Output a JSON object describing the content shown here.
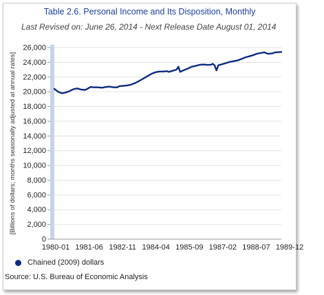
{
  "chart_data": {
    "type": "line",
    "title": "Table 2.6. Personal Income and Its Disposition, Monthly",
    "subtitle": "Last Revised on: June 26, 2014 - Next Release Date August 01, 2014",
    "ylabel": "[Billions of dollars; months seasonally adjusted at annual rates]",
    "xlabel": "",
    "ylim": [
      0,
      26000
    ],
    "yticks": [
      0,
      2000,
      4000,
      6000,
      8000,
      10000,
      12000,
      14000,
      16000,
      18000,
      20000,
      22000,
      24000,
      26000
    ],
    "ytick_labels": [
      "0",
      "2,000",
      "4,000",
      "6,000",
      "8,000",
      "10,000",
      "12,000",
      "14,000",
      "16,000",
      "18,000",
      "20,000",
      "22,000",
      "24,000",
      "26,000"
    ],
    "xtick_labels": [
      "1980-01",
      "1981-06",
      "1982-11",
      "1984-04",
      "1985-09",
      "1987-02",
      "1988-07",
      "1989-12"
    ],
    "grid": true,
    "legend": "bottom-left",
    "series": [
      {
        "name": "Chained (2009) dollars",
        "color": "#0c2a80",
        "x": [
          "1980-01",
          "1980-03",
          "1980-05",
          "1980-07",
          "1980-09",
          "1980-11",
          "1981-01",
          "1981-03",
          "1981-05",
          "1981-06",
          "1981-08",
          "1981-10",
          "1981-12",
          "1982-02",
          "1982-04",
          "1982-06",
          "1982-08",
          "1982-10",
          "1982-11",
          "1983-01",
          "1983-03",
          "1983-05",
          "1983-07",
          "1983-09",
          "1983-11",
          "1984-01",
          "1984-03",
          "1984-04",
          "1984-06",
          "1984-08",
          "1984-10",
          "1984-12",
          "1985-01",
          "1985-03",
          "1985-05",
          "1985-06",
          "1985-07",
          "1985-09",
          "1985-11",
          "1986-01",
          "1986-03",
          "1986-05",
          "1986-07",
          "1986-09",
          "1986-11",
          "1986-12",
          "1987-01",
          "1987-02",
          "1987-03",
          "1987-05",
          "1987-07",
          "1987-09",
          "1987-11",
          "1988-01",
          "1988-03",
          "1988-05",
          "1988-07",
          "1988-09",
          "1988-11",
          "1989-01",
          "1989-03",
          "1989-05",
          "1989-07",
          "1989-09",
          "1989-12"
        ],
        "values": [
          20400,
          20000,
          19800,
          19900,
          20100,
          20350,
          20450,
          20300,
          20250,
          20350,
          20650,
          20600,
          20600,
          20550,
          20650,
          20700,
          20600,
          20600,
          20750,
          20800,
          20850,
          20950,
          21150,
          21400,
          21700,
          22000,
          22300,
          22450,
          22650,
          22750,
          22750,
          22800,
          22700,
          22850,
          23000,
          23400,
          22700,
          22950,
          23150,
          23400,
          23500,
          23650,
          23700,
          23650,
          23650,
          23800,
          23600,
          22900,
          23600,
          23750,
          23900,
          24050,
          24150,
          24250,
          24450,
          24650,
          24800,
          24950,
          25150,
          25250,
          25350,
          25150,
          25200,
          25350,
          25400
        ]
      }
    ]
  },
  "legend_label": "Chained (2009) dollars",
  "source": "Source: U.S. Bureau of Economic Analysis"
}
